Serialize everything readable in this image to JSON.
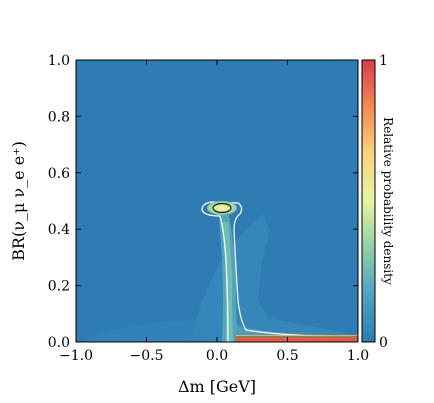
{
  "chart_data": {
    "type": "heatmap",
    "title": "",
    "xlabel": "Δm [GeV]",
    "ylabel": "BR(ν_μ ν_e e⁺)",
    "xlim": [
      -1.0,
      1.0
    ],
    "ylim": [
      0.0,
      1.0
    ],
    "x_ticks": [
      "−1.0",
      "−0.5",
      "0.0",
      "0.5",
      "1.0"
    ],
    "x_tick_values": [
      -1.0,
      -0.5,
      0.0,
      0.5,
      1.0
    ],
    "y_ticks": [
      "0.0",
      "0.2",
      "0.4",
      "0.6",
      "0.8",
      "1.0"
    ],
    "y_tick_values": [
      0.0,
      0.2,
      0.4,
      0.6,
      0.8,
      1.0
    ],
    "colorbar": {
      "label": "Relative probability density",
      "min_label": "0",
      "max_label": "1",
      "colors": [
        "#2c7bb6",
        "#4aa3c2",
        "#8fcfa5",
        "#e6f5a0",
        "#fdd27a",
        "#f28a52",
        "#d53e4f"
      ]
    },
    "background_color": "#2f7bb4",
    "density_regions": [
      {
        "name": "peak",
        "x": 0.05,
        "y": 0.475,
        "density": 0.75
      },
      {
        "name": "vertical-band",
        "x_range": [
          0.08,
          0.15
        ],
        "y_range": [
          0.0,
          0.46
        ],
        "density": 0.25
      },
      {
        "name": "bottom-edge",
        "x_range": [
          0.15,
          1.0
        ],
        "y_range": [
          0.0,
          0.01
        ],
        "density": 1.0
      }
    ],
    "grid": false
  }
}
